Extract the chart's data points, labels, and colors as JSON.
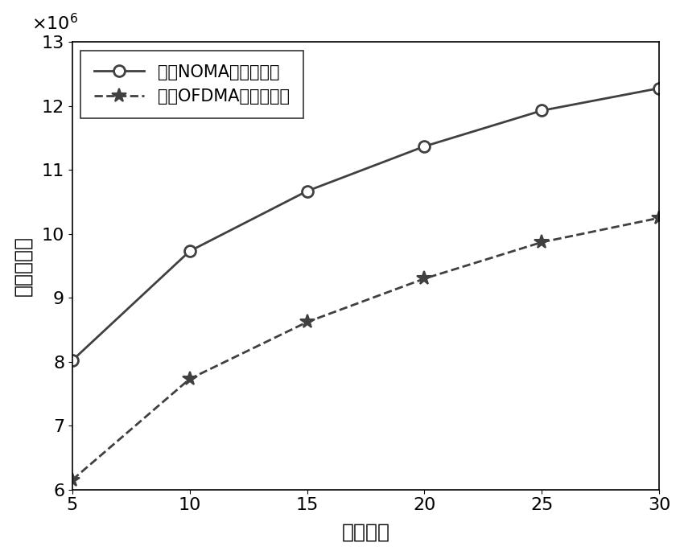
{
  "x": [
    5,
    10,
    15,
    20,
    25,
    30
  ],
  "noma_y": [
    8020000.0,
    9730000.0,
    10670000.0,
    11370000.0,
    11930000.0,
    12280000.0
  ],
  "ofdma_y": [
    6150000.0,
    7730000.0,
    8620000.0,
    9300000.0,
    9870000.0,
    10250000.0
  ],
  "noma_label": "基于NOMA的用户调度",
  "ofdma_label": "基于OFDMA的用户调度",
  "xlabel": "发射功率",
  "ylabel": "最低吩吐量",
  "xlim": [
    5,
    30
  ],
  "ylim": [
    6000000.0,
    13000000.0
  ],
  "yticks": [
    6000000.0,
    7000000.0,
    8000000.0,
    9000000.0,
    10000000.0,
    11000000.0,
    12000000.0,
    13000000.0
  ],
  "xticks": [
    5,
    10,
    15,
    20,
    25,
    30
  ],
  "line_color": "#404040",
  "bg_color": "#ffffff",
  "font_size_label": 18,
  "font_size_tick": 16,
  "font_size_legend": 15
}
